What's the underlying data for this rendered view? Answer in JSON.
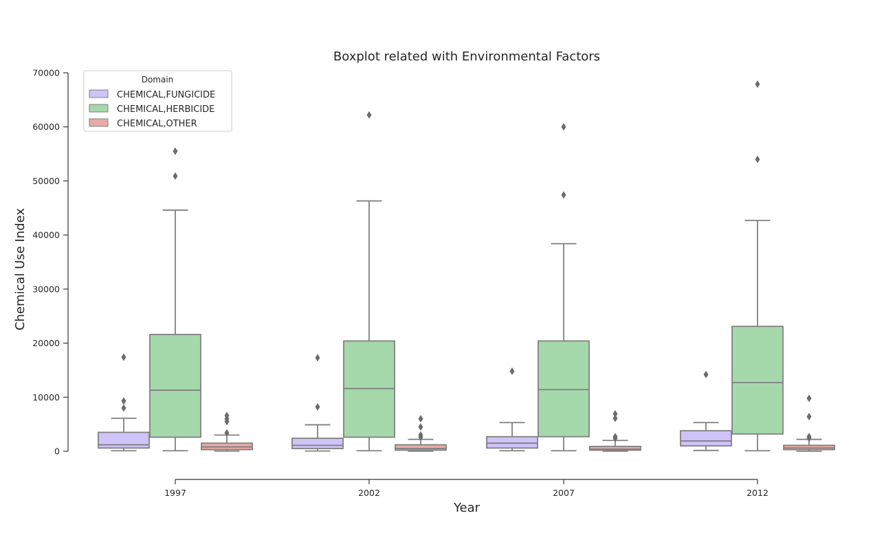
{
  "chart_data": {
    "type": "boxplot",
    "title": "Boxplot related with Environmental Factors",
    "xlabel": "Year",
    "ylabel": "Chemical Use Index",
    "categories": [
      "1997",
      "2002",
      "2007",
      "2012"
    ],
    "ylim": [
      0,
      70000
    ],
    "yticks": [
      0,
      10000,
      20000,
      30000,
      40000,
      50000,
      60000,
      70000
    ],
    "ytick_labels": [
      "0",
      "10000",
      "20000",
      "30000",
      "40000",
      "50000",
      "60000",
      "70000"
    ],
    "grid": false,
    "legend": {
      "title": "Domain",
      "placement": "top-left"
    },
    "box_edge_color": "#808080",
    "series": [
      {
        "name": "CHEMICAL,FUNGICIDE",
        "color": "#cfc3f7",
        "boxes": [
          {
            "whisker_low": 100,
            "q1": 600,
            "median": 1200,
            "q3": 3500,
            "whisker_high": 6100,
            "outliers": [
              8000,
              9300,
              17400
            ]
          },
          {
            "whisker_low": 50,
            "q1": 500,
            "median": 1100,
            "q3": 2400,
            "whisker_high": 4900,
            "outliers": [
              8200,
              17300
            ]
          },
          {
            "whisker_low": 100,
            "q1": 600,
            "median": 1500,
            "q3": 2700,
            "whisker_high": 5300,
            "outliers": [
              14800
            ]
          },
          {
            "whisker_low": 150,
            "q1": 1000,
            "median": 1900,
            "q3": 3800,
            "whisker_high": 5300,
            "outliers": [
              14200
            ]
          }
        ]
      },
      {
        "name": "CHEMICAL,HERBICIDE",
        "color": "#a5d8ab",
        "boxes": [
          {
            "whisker_low": 100,
            "q1": 2600,
            "median": 11300,
            "q3": 21600,
            "whisker_high": 44600,
            "outliers": [
              50900,
              55500
            ]
          },
          {
            "whisker_low": 100,
            "q1": 2600,
            "median": 11600,
            "q3": 20400,
            "whisker_high": 46300,
            "outliers": [
              62200
            ]
          },
          {
            "whisker_low": 100,
            "q1": 2700,
            "median": 11400,
            "q3": 20400,
            "whisker_high": 38400,
            "outliers": [
              47400,
              60000
            ]
          },
          {
            "whisker_low": 100,
            "q1": 3200,
            "median": 12700,
            "q3": 23100,
            "whisker_high": 42700,
            "outliers": [
              54000,
              67900
            ]
          }
        ]
      },
      {
        "name": "CHEMICAL,OTHER",
        "color": "#e8aaa6",
        "boxes": [
          {
            "whisker_low": 30,
            "q1": 300,
            "median": 800,
            "q3": 1500,
            "whisker_high": 3000,
            "outliers": [
              3400,
              5500,
              6000,
              6600
            ]
          },
          {
            "whisker_low": 20,
            "q1": 200,
            "median": 500,
            "q3": 1200,
            "whisker_high": 2200,
            "outliers": [
              2600,
              3000,
              4500,
              6000
            ]
          },
          {
            "whisker_low": 20,
            "q1": 200,
            "median": 400,
            "q3": 900,
            "whisker_high": 2000,
            "outliers": [
              2400,
              2700,
              6100,
              6900
            ]
          },
          {
            "whisker_low": 20,
            "q1": 300,
            "median": 600,
            "q3": 1100,
            "whisker_high": 2200,
            "outliers": [
              2400,
              2700,
              6400,
              9800
            ]
          }
        ]
      }
    ]
  }
}
